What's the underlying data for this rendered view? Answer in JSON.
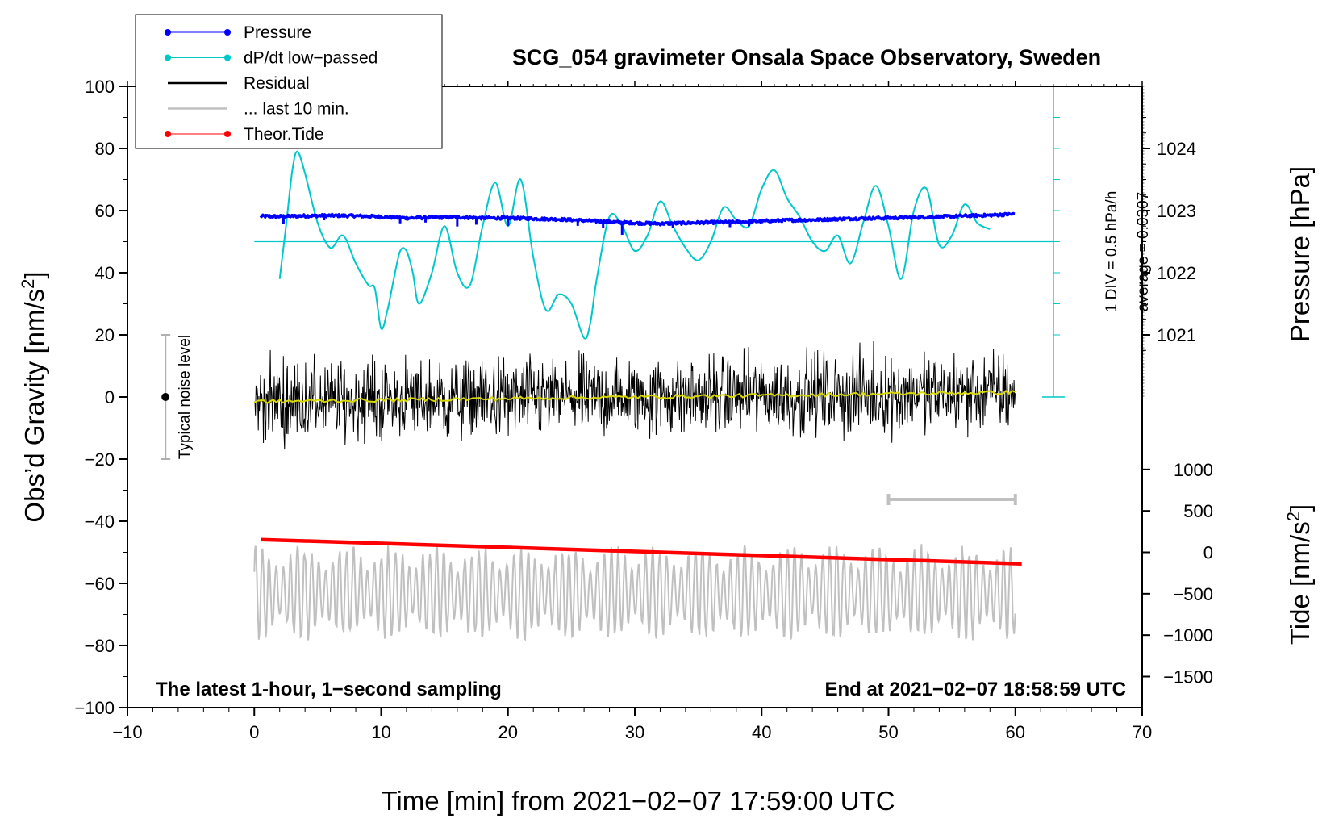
{
  "chart_data": {
    "type": "line",
    "title": "SCG_054 gravimeter Onsala Space Observatory, Sweden",
    "xlabel": "Time [min] from 2021−02−07 17:59:00 UTC",
    "ylabel_left_main": "Obs’d Gravity [nm/s",
    "ylabel_left_sup": "2",
    "ylabel_left_end": "]",
    "ylabel_right_pressure": "Pressure [hPa]",
    "ylabel_right_tide_main": "Tide [nm/s",
    "ylabel_right_tide_sup": "2",
    "ylabel_right_tide_end": "]",
    "xlim": [
      -10,
      70
    ],
    "ylim": [
      -100,
      100
    ],
    "x_ticks": [
      "−10",
      "0",
      "10",
      "20",
      "30",
      "40",
      "50",
      "60",
      "70"
    ],
    "x_tick_values": [
      -10,
      0,
      10,
      20,
      30,
      40,
      50,
      60,
      70
    ],
    "y_ticks": [
      "100",
      "80",
      "60",
      "40",
      "20",
      "0",
      "−20",
      "−40",
      "−60",
      "−80",
      "−100"
    ],
    "y_tick_values": [
      100,
      80,
      60,
      40,
      20,
      0,
      -20,
      -40,
      -60,
      -80,
      -100
    ],
    "pressure_ticks": [
      "1024",
      "1023",
      "1022",
      "1021"
    ],
    "pressure_tick_values": [
      1024,
      1023,
      1022,
      1021
    ],
    "pressure_axis_map": {
      "hPa_at_gravity_60": 1023,
      "gravity_units_per_hPa": 20
    },
    "tide_ticks": [
      "1000",
      "500",
      "0",
      "−500",
      "−1000",
      "−1500"
    ],
    "tide_tick_values": [
      1000,
      500,
      0,
      -500,
      -1000,
      -1500
    ],
    "tide_axis_map": {
      "tide_at_gravity_minus_50": 0,
      "tide_units_per_gravity_unit": 37.5
    },
    "dpdt_scale": {
      "label": "1 DIV = 0.5 hPa/h",
      "average": "average = 0.0307",
      "baseline_gravity": 50,
      "x_min": 63
    },
    "noise_bar": {
      "label": "Typical noise level",
      "x": -7,
      "center": 0,
      "half_range": 20
    },
    "last10_bar": {
      "x_start": 50,
      "x_end": 60,
      "gravity_y": -33
    },
    "footer_left": "The latest 1-hour, 1−second sampling",
    "footer_right": "End at 2021−02−07 18:58:59 UTC",
    "legend": [
      {
        "name": "Pressure",
        "color": "#0000ff",
        "marker": true,
        "width": 1
      },
      {
        "name": "dP/dt low−passed",
        "color": "#00c8c8",
        "marker": true,
        "width": 1
      },
      {
        "name": "Residual",
        "color": "#000000",
        "marker": false,
        "width": 2.5
      },
      {
        "name": "... last 10 min.",
        "color": "#c0c0c0",
        "marker": false,
        "width": 2.5
      },
      {
        "name": "Theor.Tide",
        "color": "#ff0000",
        "marker": true,
        "width": 1
      }
    ],
    "series": [
      {
        "name": "Pressure",
        "color": "#0000ff",
        "x": [
          0.5,
          2,
          4,
          6,
          8,
          10,
          12,
          14,
          16,
          18,
          20,
          22,
          24,
          26,
          28,
          30,
          32,
          34,
          36,
          38,
          40,
          42,
          44,
          46,
          48,
          50,
          52,
          54,
          56,
          58,
          60
        ],
        "y": [
          58.2,
          58.1,
          58.3,
          58.4,
          58.3,
          58.0,
          57.6,
          57.8,
          57.9,
          57.6,
          57.6,
          57.4,
          57.2,
          56.8,
          56.4,
          56.0,
          55.8,
          56.0,
          56.2,
          56.3,
          56.6,
          56.9,
          57.0,
          57.3,
          57.5,
          57.6,
          57.8,
          58.0,
          58.3,
          58.5,
          58.9
        ]
      },
      {
        "name": "dP/dt low−passed",
        "color": "#00c8c8",
        "x": [
          2,
          2.5,
          3,
          3.4,
          4,
          5,
          6,
          7,
          8,
          9,
          9.5,
          10,
          10.5,
          11,
          11.5,
          12,
          12.5,
          13,
          14,
          15,
          16,
          17,
          18,
          19,
          20,
          21,
          22,
          23,
          24,
          25,
          26,
          26.5,
          27,
          28,
          29,
          30,
          31,
          32,
          33,
          34,
          35,
          36,
          37,
          38,
          39,
          40,
          41,
          42,
          43,
          44,
          45,
          46,
          47,
          48,
          49,
          50,
          51,
          52,
          53,
          54,
          55,
          56,
          57,
          58
        ],
        "y": [
          38,
          55,
          73,
          79,
          72,
          56,
          48,
          52,
          43,
          36,
          35,
          22,
          28,
          38,
          47,
          47,
          40,
          30,
          40,
          55,
          40,
          36,
          55,
          69,
          55,
          70,
          45,
          28,
          33,
          30,
          19,
          24,
          38,
          58,
          55,
          47,
          52,
          63,
          55,
          48,
          44,
          50,
          61,
          57,
          55,
          67,
          73,
          64,
          58,
          50,
          47,
          52,
          43,
          56,
          68,
          55,
          38,
          60,
          67,
          49,
          52,
          62,
          56,
          54
        ]
      },
      {
        "name": "Residual",
        "color": "#000000",
        "noise_rms": 7,
        "x": [
          0,
          10,
          20,
          30,
          40,
          50,
          60
        ],
        "y": [
          -1.5,
          -1,
          -0.5,
          0,
          0.5,
          1,
          1.5
        ]
      },
      {
        "name": "... last 10 min.",
        "color": "#c0c0c0",
        "center": -63,
        "amplitude": 11,
        "x": [
          0,
          60
        ],
        "y": [
          -63,
          -63
        ]
      },
      {
        "name": "Theor.Tide",
        "color": "#ff0000",
        "x": [
          0.5,
          60.5
        ],
        "y": [
          -45.9,
          -53.7
        ]
      }
    ]
  }
}
